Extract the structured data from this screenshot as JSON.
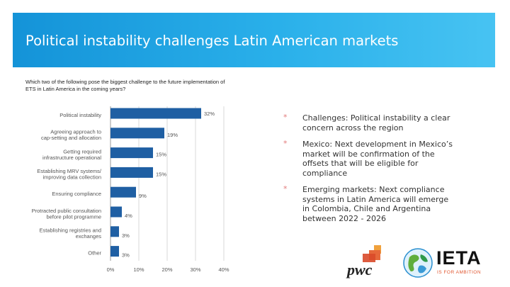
{
  "header": {
    "title": "Political instability challenges Latin American markets"
  },
  "question": "Which two of the following pose the biggest challenge to the future implementation of ETS in Latin America in the coming years?",
  "chart_data": {
    "type": "bar",
    "orientation": "horizontal",
    "categories": [
      "Political instability",
      "Agreeing approach to cap-setting and allocation",
      "Getting required infrastructure operational",
      "Establishing MRV systems/ improving data collection",
      "Ensuring compliance",
      "Protracted public consultation before pilot programme",
      "Establishing registries and exchanges",
      "Other"
    ],
    "category_lines": [
      [
        "Political instability"
      ],
      [
        "Agreeing approach to",
        "cap-setting and allocation"
      ],
      [
        "Getting required",
        "infrastructure operational"
      ],
      [
        "Establishing MRV systems/",
        "improving data collection"
      ],
      [
        "Ensuring compliance"
      ],
      [
        "Protracted public consultation",
        "before pilot programme"
      ],
      [
        "Establishing registries and",
        "exchanges"
      ],
      [
        "Other"
      ]
    ],
    "values": [
      32,
      19,
      15,
      15,
      9,
      4,
      3,
      3
    ],
    "value_labels": [
      "32%",
      "19%",
      "15%",
      "15%",
      "9%",
      "4%",
      "3%",
      "3%"
    ],
    "xlim": [
      0,
      40
    ],
    "xticks": [
      "0%",
      "10%",
      "20%",
      "30%",
      "40%"
    ],
    "bar_color": "#1f5fa3",
    "grid": true
  },
  "bullets": [
    {
      "marker": "*",
      "text": "Challenges: Political instability a clear concern across the region"
    },
    {
      "marker": "*",
      "text": "Mexico: Next development in Mexico’s market will be confirmation of the offsets that will be eligible for compliance"
    },
    {
      "marker": "*",
      "text": "Emerging markets: Next compliance systems in Latin America will emerge in Colombia, Chile and Argentina between 2022 - 2026"
    }
  ],
  "logos": {
    "pwc": "pwc",
    "ieta": "IETA",
    "ieta_tagline": "IS FOR AMBITION"
  },
  "colors": {
    "header": "#1a9ee0",
    "bar": "#1f5fa3",
    "bullet_marker": "#e27b7b"
  }
}
